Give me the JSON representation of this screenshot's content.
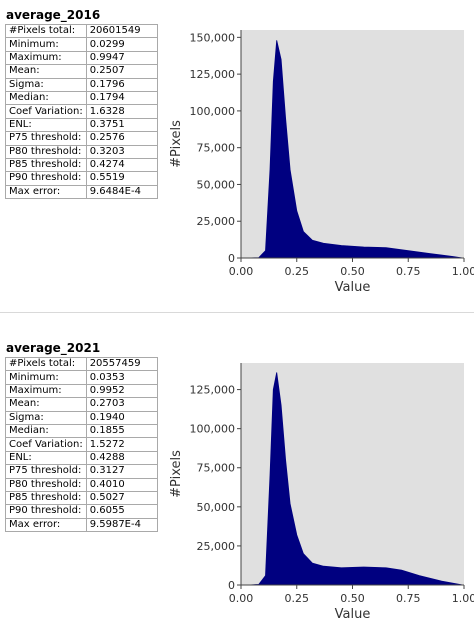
{
  "panels": [
    {
      "title": "average_2016",
      "stats": [
        {
          "label": "#Pixels total:",
          "value": "20601549"
        },
        {
          "label": "Minimum:",
          "value": "0.0299"
        },
        {
          "label": "Maximum:",
          "value": "0.9947"
        },
        {
          "label": "Mean:",
          "value": "0.2507"
        },
        {
          "label": "Sigma:",
          "value": "0.1796"
        },
        {
          "label": "Median:",
          "value": "0.1794"
        },
        {
          "label": "Coef Variation:",
          "value": "1.6328"
        },
        {
          "label": "ENL:",
          "value": "0.3751"
        },
        {
          "label": "P75 threshold:",
          "value": "0.2576"
        },
        {
          "label": "P80 threshold:",
          "value": "0.3203"
        },
        {
          "label": "P85 threshold:",
          "value": "0.4274"
        },
        {
          "label": "P90 threshold:",
          "value": "0.5519"
        },
        {
          "label": "Max error:",
          "value": "9.6484E-4"
        }
      ]
    },
    {
      "title": "average_2021",
      "stats": [
        {
          "label": "#Pixels total:",
          "value": "20557459"
        },
        {
          "label": "Minimum:",
          "value": "0.0353"
        },
        {
          "label": "Maximum:",
          "value": "0.9952"
        },
        {
          "label": "Mean:",
          "value": "0.2703"
        },
        {
          "label": "Sigma:",
          "value": "0.1940"
        },
        {
          "label": "Median:",
          "value": "0.1855"
        },
        {
          "label": "Coef Variation:",
          "value": "1.5272"
        },
        {
          "label": "ENL:",
          "value": "0.4288"
        },
        {
          "label": "P75 threshold:",
          "value": "0.3127"
        },
        {
          "label": "P80 threshold:",
          "value": "0.4010"
        },
        {
          "label": "P85 threshold:",
          "value": "0.5027"
        },
        {
          "label": "P90 threshold:",
          "value": "0.6055"
        },
        {
          "label": "Max error:",
          "value": "9.5987E-4"
        }
      ]
    }
  ],
  "chart_data": [
    {
      "type": "area",
      "title": "",
      "xlabel": "Value",
      "ylabel": "#Pixels",
      "xlim": [
        0.0,
        1.0
      ],
      "ylim": [
        0,
        155000
      ],
      "x_ticks": [
        "0.00",
        "0.25",
        "0.50",
        "0.75",
        "1.00"
      ],
      "y_ticks": [
        "0",
        "25,000",
        "50,000",
        "75,000",
        "100,000",
        "125,000",
        "150,000"
      ],
      "grid": false,
      "plot_background": "#e0e0e0",
      "fill_color": "#000080",
      "series": [
        {
          "x": [
            0.03,
            0.08,
            0.11,
            0.13,
            0.145,
            0.16,
            0.18,
            0.2,
            0.22,
            0.25,
            0.28,
            0.32,
            0.37,
            0.45,
            0.55,
            0.65,
            0.75,
            0.85,
            0.95,
            0.995
          ],
          "values": [
            0,
            300,
            5000,
            60000,
            120000,
            148000,
            135000,
            95000,
            60000,
            32000,
            18000,
            12000,
            10000,
            8500,
            7500,
            7000,
            5000,
            3000,
            1000,
            0
          ]
        }
      ]
    },
    {
      "type": "area",
      "title": "",
      "xlabel": "Value",
      "ylabel": "#Pixels",
      "xlim": [
        0.0,
        1.0
      ],
      "ylim": [
        0,
        142000
      ],
      "x_ticks": [
        "0.00",
        "0.25",
        "0.50",
        "0.75",
        "1.00"
      ],
      "y_ticks": [
        "0",
        "25,000",
        "50,000",
        "75,000",
        "100,000",
        "125,000"
      ],
      "grid": false,
      "plot_background": "#e0e0e0",
      "fill_color": "#000080",
      "series": [
        {
          "x": [
            0.035,
            0.08,
            0.11,
            0.13,
            0.145,
            0.16,
            0.18,
            0.2,
            0.22,
            0.25,
            0.28,
            0.32,
            0.37,
            0.45,
            0.55,
            0.65,
            0.72,
            0.8,
            0.9,
            0.995
          ],
          "values": [
            0,
            400,
            6000,
            70000,
            125000,
            136000,
            115000,
            80000,
            52000,
            32000,
            20000,
            14000,
            12000,
            11000,
            11500,
            11000,
            9500,
            6000,
            2500,
            0
          ]
        }
      ]
    }
  ]
}
